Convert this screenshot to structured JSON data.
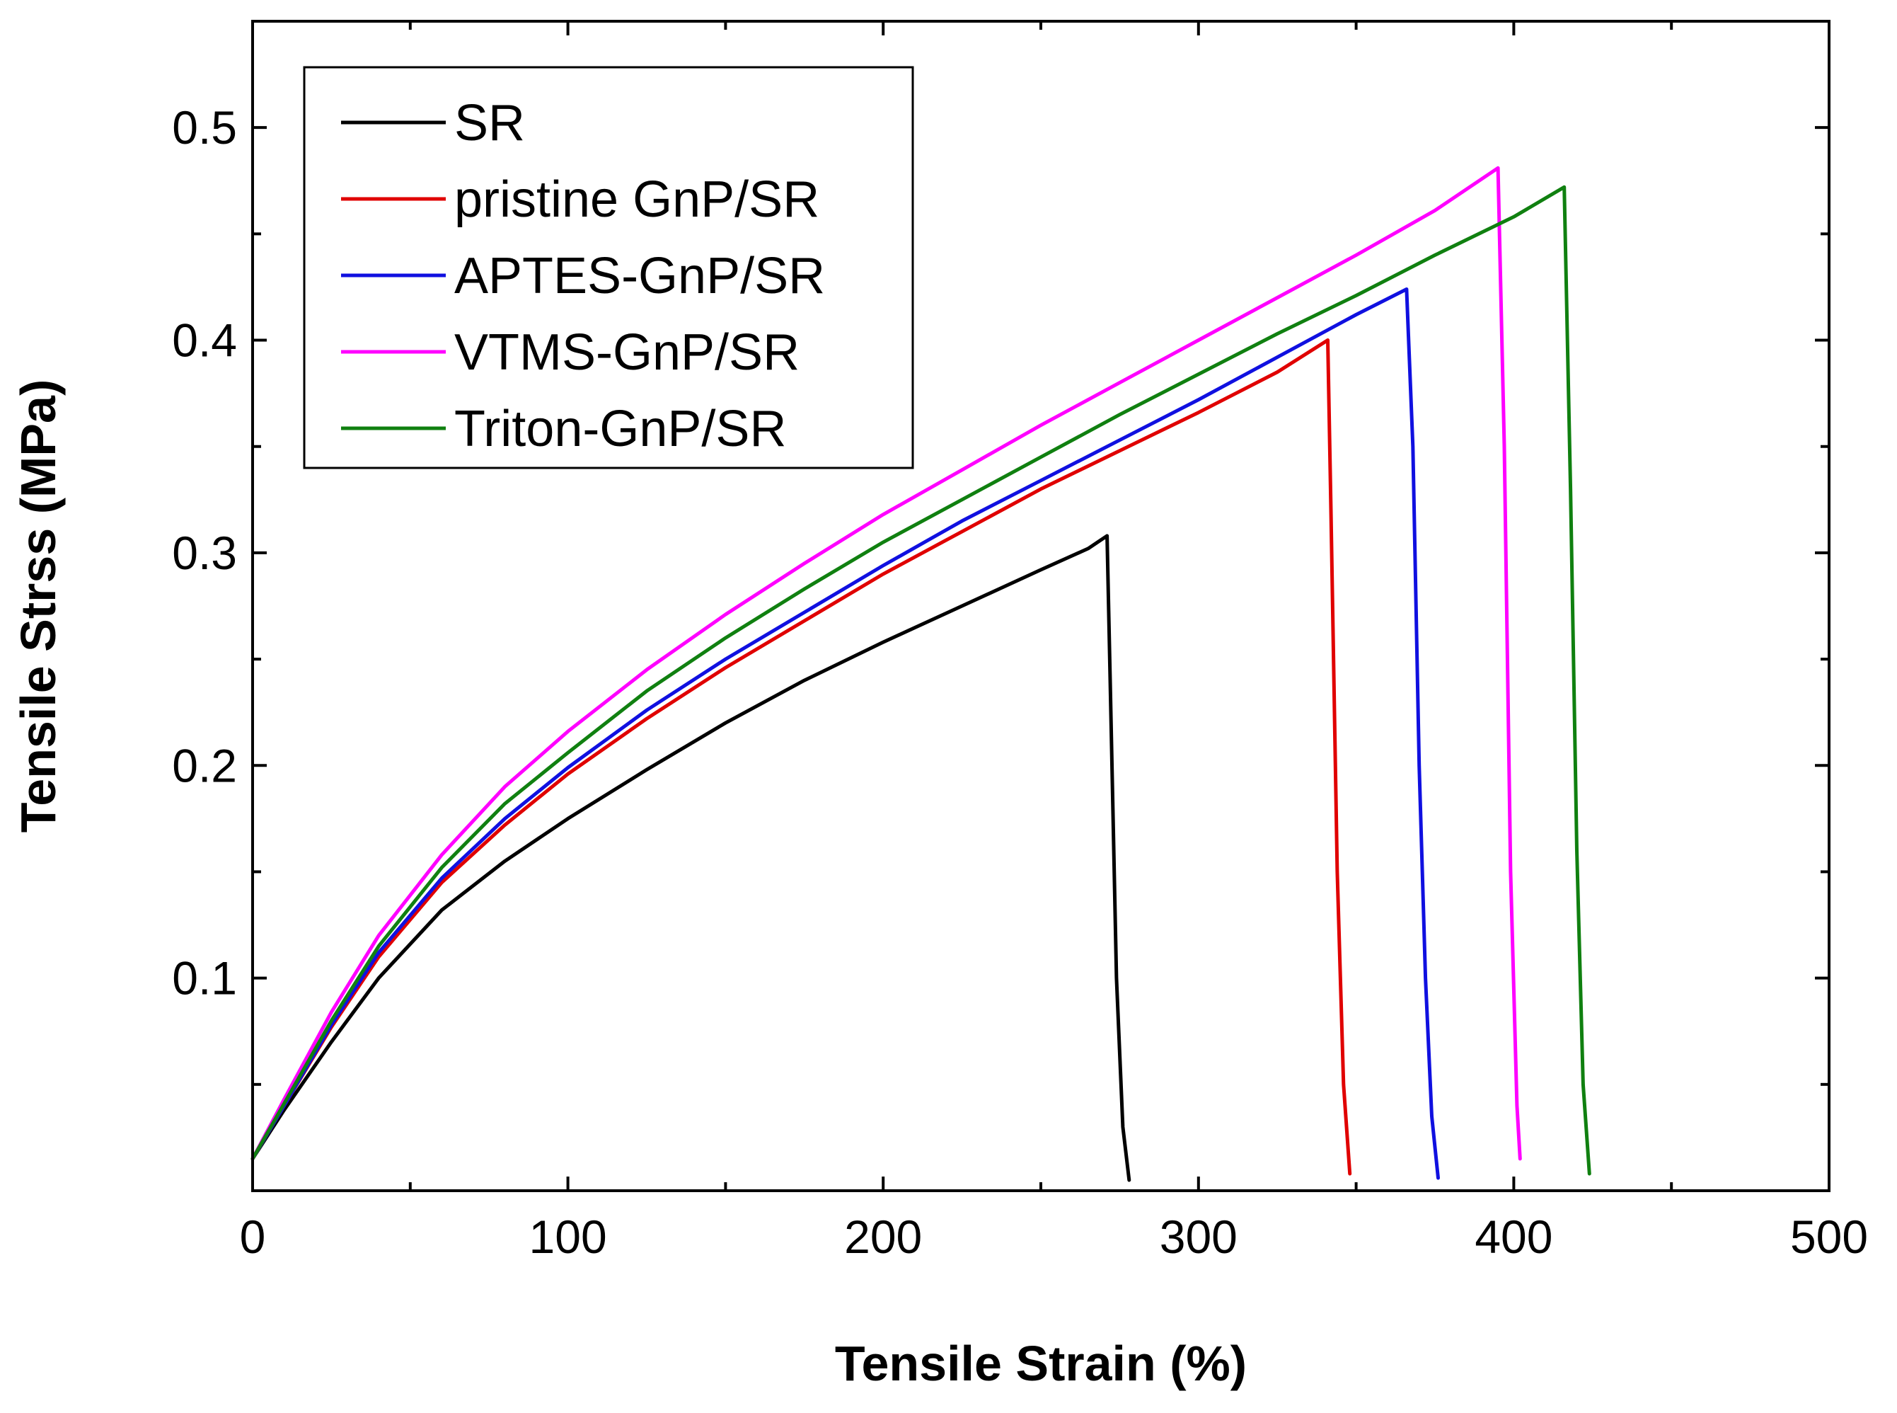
{
  "chart_data": {
    "type": "line",
    "title": "",
    "xlabel": "Tensile Strain (%)",
    "ylabel": "Tensile Strss (MPa)",
    "xlim": [
      0,
      500
    ],
    "ylim": [
      0,
      0.55
    ],
    "xticks": [
      0,
      100,
      200,
      300,
      400,
      500
    ],
    "xtick_labels": [
      "0",
      "100",
      "200",
      "300",
      "400",
      "500"
    ],
    "yticks": [
      0.1,
      0.2,
      0.3,
      0.4,
      0.5
    ],
    "ytick_labels": [
      "0.1",
      "0.2",
      "0.3",
      "0.4",
      "0.5"
    ],
    "grid": false,
    "legend_position": "top-left",
    "series": [
      {
        "name": "SR",
        "color": "#000000",
        "x": [
          0,
          10,
          25,
          40,
          60,
          80,
          100,
          125,
          150,
          175,
          200,
          225,
          250,
          265,
          271,
          272,
          274,
          276,
          278
        ],
        "y": [
          0.015,
          0.038,
          0.07,
          0.1,
          0.132,
          0.155,
          0.175,
          0.198,
          0.22,
          0.24,
          0.258,
          0.275,
          0.292,
          0.302,
          0.308,
          0.24,
          0.1,
          0.03,
          0.005
        ]
      },
      {
        "name": "pristine GnP/SR",
        "color": "#e00000",
        "x": [
          0,
          10,
          25,
          40,
          60,
          80,
          100,
          125,
          150,
          175,
          200,
          225,
          250,
          275,
          300,
          325,
          341,
          342,
          344,
          346,
          348
        ],
        "y": [
          0.015,
          0.04,
          0.077,
          0.11,
          0.145,
          0.172,
          0.196,
          0.222,
          0.246,
          0.268,
          0.29,
          0.31,
          0.33,
          0.348,
          0.366,
          0.385,
          0.4,
          0.32,
          0.15,
          0.05,
          0.008
        ]
      },
      {
        "name": "APTES-GnP/SR",
        "color": "#1010e0",
        "x": [
          0,
          10,
          25,
          40,
          60,
          80,
          100,
          125,
          150,
          175,
          200,
          225,
          250,
          275,
          300,
          325,
          350,
          366,
          368,
          370,
          372,
          374,
          376
        ],
        "y": [
          0.015,
          0.04,
          0.078,
          0.112,
          0.147,
          0.175,
          0.199,
          0.226,
          0.25,
          0.272,
          0.294,
          0.315,
          0.334,
          0.353,
          0.372,
          0.392,
          0.412,
          0.424,
          0.35,
          0.2,
          0.1,
          0.035,
          0.006
        ]
      },
      {
        "name": "VTMS-GnP/SR",
        "color": "#ff00ff",
        "x": [
          0,
          10,
          25,
          40,
          60,
          80,
          100,
          125,
          150,
          175,
          200,
          225,
          250,
          275,
          300,
          325,
          350,
          375,
          395,
          397,
          399,
          401,
          402
        ],
        "y": [
          0.015,
          0.043,
          0.084,
          0.12,
          0.158,
          0.19,
          0.216,
          0.245,
          0.271,
          0.295,
          0.318,
          0.339,
          0.36,
          0.38,
          0.4,
          0.42,
          0.44,
          0.461,
          0.481,
          0.35,
          0.15,
          0.04,
          0.015
        ]
      },
      {
        "name": "Triton-GnP/SR",
        "color": "#108010",
        "x": [
          0,
          10,
          25,
          40,
          60,
          80,
          100,
          125,
          150,
          175,
          200,
          225,
          250,
          275,
          300,
          325,
          350,
          375,
          400,
          416,
          418,
          420,
          422,
          424
        ],
        "y": [
          0.015,
          0.041,
          0.08,
          0.115,
          0.152,
          0.182,
          0.206,
          0.235,
          0.26,
          0.283,
          0.305,
          0.325,
          0.345,
          0.365,
          0.384,
          0.403,
          0.421,
          0.44,
          0.458,
          0.472,
          0.33,
          0.16,
          0.05,
          0.008
        ]
      }
    ]
  }
}
